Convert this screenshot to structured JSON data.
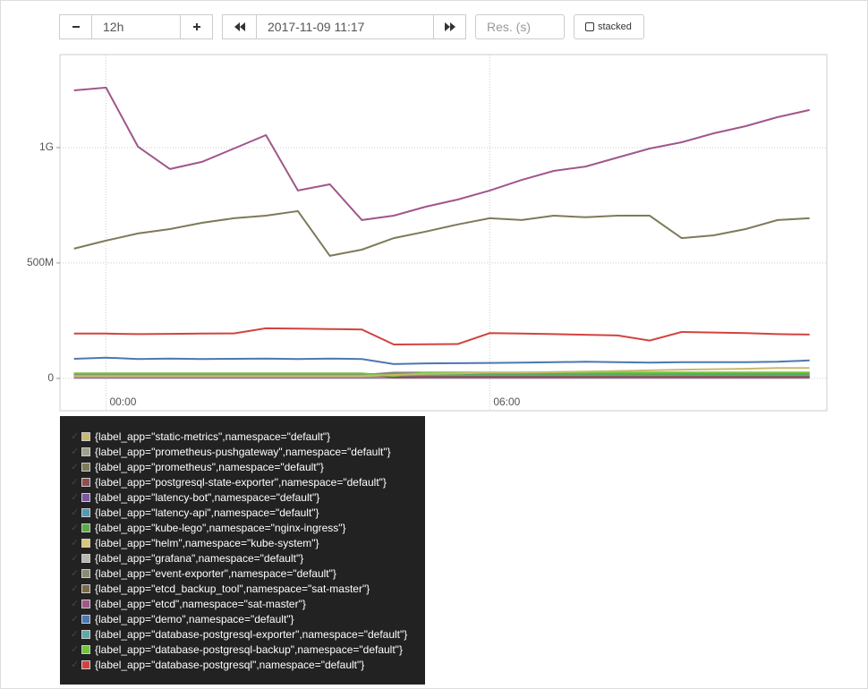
{
  "controls": {
    "range": "12h",
    "end_time": "2017-11-09 11:17",
    "resolution_placeholder": "Res. (s)",
    "stacked": "stacked"
  },
  "chart_data": {
    "type": "line",
    "x": [
      -0.5,
      0,
      0.5,
      1,
      1.5,
      2,
      2.5,
      3,
      3.5,
      4,
      4.5,
      5,
      5.5,
      6,
      6.5,
      7,
      7.5,
      8,
      8.5,
      9,
      9.5,
      10,
      10.5,
      11
    ],
    "xlim": [
      -0.72,
      11.27
    ],
    "xticks": [
      {
        "value": 0,
        "label": "00:00"
      },
      {
        "value": 6,
        "label": "06:00"
      }
    ],
    "ylim": [
      -140000000,
      1403000000
    ],
    "yticks": [
      0,
      {
        "value": 500000000,
        "label": "500M"
      },
      {
        "value": 1000000000,
        "label": "1G"
      }
    ],
    "grid": true,
    "series": [
      {
        "name": "{label_app=\"static-metrics\",namespace=\"default\"}",
        "color": "#c8b96e",
        "values": [
          10000000,
          10000000,
          10000000,
          10000000,
          10000000,
          10000000,
          10000000,
          10000000,
          10000000,
          10000000,
          15000000,
          20000000,
          22000000,
          25000000,
          25000000,
          28000000,
          30000000,
          32000000,
          35000000,
          38000000,
          40000000,
          42000000,
          45000000,
          45000000
        ]
      },
      {
        "name": "{label_app=\"prometheus-pushgateway\",namespace=\"default\"}",
        "color": "#a0a08a",
        "values": [
          8000000,
          8000000,
          8000000,
          8000000,
          8000000,
          8000000,
          8000000,
          8000000,
          8000000,
          8000000,
          8000000,
          8000000,
          8000000,
          8000000,
          8000000,
          8000000,
          8000000,
          8000000,
          8000000,
          8000000,
          8000000,
          8000000,
          8000000,
          8000000
        ]
      },
      {
        "name": "{label_app=\"prometheus\",namespace=\"default\"}",
        "color": "#7e7a59",
        "values": [
          562000000,
          597000000,
          628000000,
          647000000,
          674000000,
          694000000,
          705000000,
          725000000,
          531000000,
          558000000,
          608000000,
          636000000,
          667000000,
          694000000,
          686000000,
          705000000,
          698000000,
          705000000,
          705000000,
          608000000,
          620000000,
          647000000,
          686000000,
          694000000
        ]
      },
      {
        "name": "{label_app=\"postgresql-state-exporter\",namespace=\"default\"}",
        "color": "#8f4f4f",
        "values": [
          20000000,
          20000000,
          19000000,
          20000000,
          21000000,
          20000000,
          20000000,
          19000000,
          20000000,
          20000000,
          5000000,
          6000000,
          6000000,
          6000000,
          6000000,
          6000000,
          6000000,
          6000000,
          6000000,
          6000000,
          6000000,
          6000000,
          6000000,
          6000000
        ]
      },
      {
        "name": "{label_app=\"latency-bot\",namespace=\"default\"}",
        "color": "#7b57a0",
        "values": [
          3000000,
          3000000,
          3000000,
          3000000,
          3000000,
          3000000,
          3000000,
          3000000,
          3000000,
          3000000,
          3000000,
          3000000,
          3000000,
          3000000,
          3000000,
          3000000,
          3000000,
          3000000,
          3000000,
          3000000,
          3000000,
          3000000,
          3000000,
          3000000
        ]
      },
      {
        "name": "{label_app=\"latency-api\",namespace=\"default\"}",
        "color": "#4f9ab5",
        "values": [
          12000000,
          12000000,
          12000000,
          12000000,
          12000000,
          12000000,
          12000000,
          12000000,
          12000000,
          12000000,
          12000000,
          12000000,
          12000000,
          12000000,
          12000000,
          12000000,
          12000000,
          12000000,
          12000000,
          12000000,
          12000000,
          12000000,
          12000000,
          12000000
        ]
      },
      {
        "name": "{label_app=\"kube-lego\",namespace=\"nginx-ingress\"}",
        "color": "#5aa846",
        "values": [
          18000000,
          18000000,
          18000000,
          18000000,
          18000000,
          18000000,
          18000000,
          18000000,
          18000000,
          18000000,
          20000000,
          20000000,
          20000000,
          20000000,
          20000000,
          20000000,
          20000000,
          20000000,
          20000000,
          20000000,
          20000000,
          20000000,
          20000000,
          20000000
        ]
      },
      {
        "name": "{label_app=\"helm\",namespace=\"kube-system\"}",
        "color": "#d6c77a",
        "values": [
          2000000,
          2000000,
          2000000,
          2000000,
          2000000,
          2000000,
          2000000,
          2000000,
          2000000,
          2000000,
          2000000,
          2000000,
          2000000,
          2000000,
          2000000,
          2000000,
          2000000,
          2000000,
          2000000,
          2000000,
          2000000,
          2000000,
          2000000,
          2000000
        ]
      },
      {
        "name": "{label_app=\"grafana\",namespace=\"default\"}",
        "color": "#b8b8b0",
        "values": [
          6000000,
          6000000,
          6000000,
          6000000,
          6000000,
          6000000,
          6000000,
          6000000,
          6000000,
          6000000,
          6000000,
          6000000,
          6000000,
          6000000,
          6000000,
          6000000,
          6000000,
          6000000,
          6000000,
          6000000,
          6000000,
          6000000,
          6000000,
          6000000
        ]
      },
      {
        "name": "{label_app=\"event-exporter\",namespace=\"default\"}",
        "color": "#8a8a76",
        "values": [
          15000000,
          15000000,
          15000000,
          15000000,
          15000000,
          15000000,
          15000000,
          15000000,
          15000000,
          15000000,
          25000000,
          25000000,
          25000000,
          25000000,
          25000000,
          25000000,
          25000000,
          25000000,
          25000000,
          25000000,
          25000000,
          25000000,
          25000000,
          25000000
        ]
      },
      {
        "name": "{label_app=\"etcd_backup_tool\",namespace=\"sat-master\"}",
        "color": "#7a6a4a",
        "values": [
          10000000,
          10000000,
          10000000,
          10000000,
          10000000,
          10000000,
          10000000,
          10000000,
          10000000,
          10000000,
          10000000,
          10000000,
          10000000,
          10000000,
          10000000,
          10000000,
          10000000,
          10000000,
          10000000,
          10000000,
          10000000,
          10000000,
          10000000,
          10000000
        ]
      },
      {
        "name": "{label_app=\"etcd\",namespace=\"sat-master\"}",
        "color": "#a0578a",
        "values": [
          1248000000,
          1260000000,
          1004000000,
          907000000,
          938000000,
          996000000,
          1054000000,
          814000000,
          841000000,
          686000000,
          705000000,
          744000000,
          775000000,
          814000000,
          860000000,
          899000000,
          918000000,
          957000000,
          996000000,
          1023000000,
          1062000000,
          1093000000,
          1132000000,
          1163000000
        ]
      },
      {
        "name": "{label_app=\"demo\",namespace=\"default\"}",
        "color": "#4b78b0",
        "values": [
          85000000,
          90000000,
          84000000,
          86000000,
          84000000,
          85000000,
          86000000,
          84000000,
          86000000,
          84000000,
          62000000,
          65000000,
          66000000,
          67000000,
          68000000,
          70000000,
          72000000,
          70000000,
          68000000,
          70000000,
          70000000,
          70000000,
          72000000,
          78000000
        ]
      },
      {
        "name": "{label_app=\"database-postgresql-exporter\",namespace=\"default\"}",
        "color": "#5aaaa8",
        "values": [
          14000000,
          14000000,
          14000000,
          14000000,
          14000000,
          14000000,
          14000000,
          14000000,
          14000000,
          14000000,
          14000000,
          14000000,
          14000000,
          14000000,
          14000000,
          14000000,
          14000000,
          14000000,
          14000000,
          14000000,
          14000000,
          14000000,
          14000000,
          14000000
        ]
      },
      {
        "name": "{label_app=\"database-postgresql-backup\",namespace=\"default\"}",
        "color": "#6ec43c",
        "values": [
          22000000,
          22000000,
          22000000,
          22000000,
          22000000,
          22000000,
          22000000,
          22000000,
          22000000,
          22000000,
          10000000,
          25000000,
          25000000,
          25000000,
          25000000,
          25000000,
          25000000,
          25000000,
          25000000,
          25000000,
          25000000,
          25000000,
          25000000,
          25000000
        ]
      },
      {
        "name": "{label_app=\"database-postgresql\",namespace=\"default\"}",
        "color": "#d2433f",
        "values": [
          194000000,
          194000000,
          192000000,
          193000000,
          194000000,
          195000000,
          217000000,
          216000000,
          214000000,
          212000000,
          147000000,
          148000000,
          149000000,
          196000000,
          194000000,
          192000000,
          189000000,
          186000000,
          164000000,
          201000000,
          199000000,
          196000000,
          192000000,
          190000000
        ]
      }
    ]
  }
}
